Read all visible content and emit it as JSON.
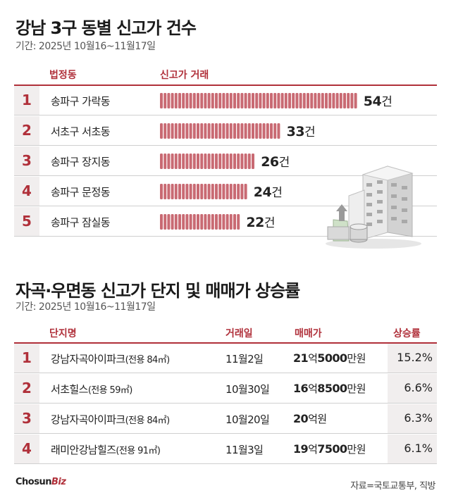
{
  "section1": {
    "title": "강남 3구 동별 신고가 건수",
    "period": "기간: 2025년 10월16~11월17일",
    "headers": {
      "district": "법정동",
      "deals": "신고가 거래"
    }
  },
  "section2": {
    "title": "자곡·우면동 신고가 단지 및 매매가 상승률",
    "period": "기간: 2025년 10월16~11월17일",
    "headers": {
      "complex": "단지명",
      "date": "거래일",
      "price": "매매가",
      "rate": "상승률"
    },
    "rows": [
      {
        "rank": "1",
        "name": "강남자곡아이파크",
        "area": "(전용 84㎡)",
        "date": "11월2일",
        "price_a": "21",
        "price_b": "억",
        "price_c": "5000",
        "price_d": "만원",
        "rate": "15.2%"
      },
      {
        "rank": "2",
        "name": "서초힐스",
        "area": "(전용 59㎡)",
        "date": "10월30일",
        "price_a": "16",
        "price_b": "억",
        "price_c": "8500",
        "price_d": "만원",
        "rate": "6.6%"
      },
      {
        "rank": "3",
        "name": "강남자곡아이파크",
        "area": "(전용 84㎡)",
        "date": "10월20일",
        "price_a": "20",
        "price_b": "억원",
        "price_c": "",
        "price_d": "",
        "rate": "6.3%"
      },
      {
        "rank": "4",
        "name": "래미안강남힐즈",
        "area": "(전용 91㎡)",
        "date": "11월3일",
        "price_a": "19",
        "price_b": "억",
        "price_c": "7500",
        "price_d": "만원",
        "rate": "6.1%"
      }
    ]
  },
  "chart_data": {
    "type": "bar",
    "title": "강남 3구 동별 신고가 건수",
    "subtitle": "기간: 2025년 10월16~11월17일",
    "xlabel": "법정동",
    "ylabel": "신고가 거래",
    "ranks": [
      "1",
      "2",
      "3",
      "4",
      "5"
    ],
    "categories": [
      "송파구 가락동",
      "서초구 서초동",
      "송파구 장지동",
      "송파구 문정동",
      "송파구 잠실동"
    ],
    "values": [
      54,
      33,
      26,
      24,
      22
    ],
    "unit": "건",
    "bar_color": "#c96a73"
  },
  "footer": {
    "logo_main": "Chosun",
    "logo_accent": "Biz",
    "source": "자료=국토교통부, 직방"
  },
  "colors": {
    "accent": "#b0303a",
    "rank_bg": "#f1eeee"
  }
}
